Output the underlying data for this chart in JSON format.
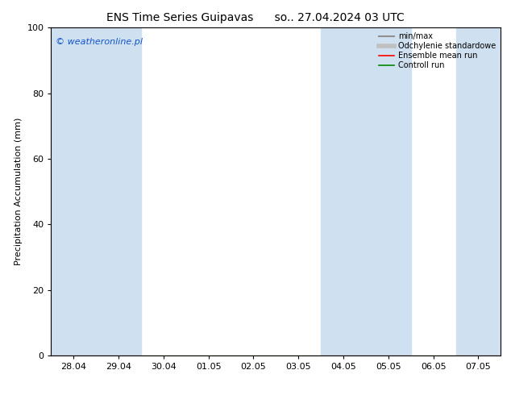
{
  "title_left": "ENS Time Series Guipavas",
  "title_right": "so.. 27.04.2024 03 UTC",
  "ylabel": "Precipitation Accumulation (mm)",
  "ylim": [
    0,
    100
  ],
  "yticks": [
    0,
    20,
    40,
    60,
    80,
    100
  ],
  "xtick_labels": [
    "28.04",
    "29.04",
    "30.04",
    "01.05",
    "02.05",
    "03.05",
    "04.05",
    "05.05",
    "06.05",
    "07.05"
  ],
  "n_ticks": 10,
  "xlim": [
    0,
    10
  ],
  "shaded_bands": [
    {
      "x_start": 0.0,
      "x_end": 2.0
    },
    {
      "x_start": 6.0,
      "x_end": 8.0
    },
    {
      "x_start": 9.0,
      "x_end": 10.0
    }
  ],
  "band_color": "#cfe0f0",
  "legend_labels": [
    "min/max",
    "Odchylenie standardowe",
    "Ensemble mean run",
    "Controll run"
  ],
  "minmax_color": "#909090",
  "std_color": "#c0c0c0",
  "mean_color": "#ff0000",
  "control_color": "#008800",
  "watermark": "© weatheronline.pl",
  "watermark_color": "#1155cc",
  "background_color": "#ffffff",
  "plot_bg_color": "#ffffff",
  "title_fontsize": 10,
  "axis_fontsize": 8,
  "tick_fontsize": 8
}
